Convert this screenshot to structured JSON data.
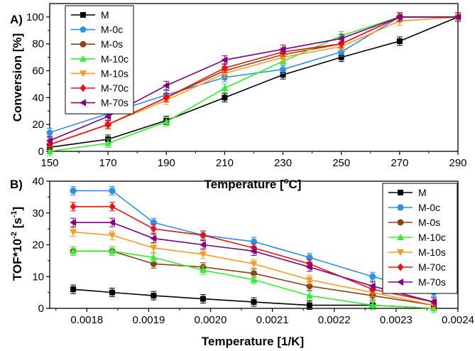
{
  "colors": {
    "M": "#000000",
    "M-0c": "#2e8ee8",
    "M-0s": "#8b4513",
    "M-10c": "#33ee33",
    "M-10s": "#ff9922",
    "M-70c": "#ee1111",
    "M-70s": "#800080"
  },
  "chart_data": [
    {
      "panel": "A)",
      "type": "line",
      "xlabel": "Temperature [",
      "xlabel_sup": "o",
      "xlabel_tail": "C]",
      "ylabel": "Conversion [%]",
      "xlim": [
        150,
        290
      ],
      "ylim": [
        0,
        110
      ],
      "xticks": [
        150,
        170,
        190,
        210,
        230,
        250,
        270,
        290
      ],
      "yticks": [
        0,
        20,
        40,
        60,
        80,
        100
      ],
      "legend_position": "top-left",
      "series": [
        {
          "name": "M",
          "marker": "square",
          "x": [
            150,
            170,
            190,
            210,
            230,
            250,
            270,
            290
          ],
          "values": [
            3,
            9,
            23,
            40,
            57,
            70,
            82,
            100
          ]
        },
        {
          "name": "M-0c",
          "marker": "pentagon",
          "x": [
            150,
            170,
            190,
            210,
            230,
            250,
            270,
            290
          ],
          "values": [
            14,
            28,
            42,
            55,
            61,
            74,
            100,
            100
          ]
        },
        {
          "name": "M-0s",
          "marker": "circle",
          "x": [
            150,
            170,
            190,
            210,
            230,
            250,
            270,
            290
          ],
          "values": [
            5,
            20,
            40,
            60,
            72,
            80,
            100,
            100
          ]
        },
        {
          "name": "M-10c",
          "marker": "triangle-up",
          "x": [
            150,
            170,
            190,
            210,
            230,
            250,
            270,
            290
          ],
          "values": [
            0,
            6,
            22,
            47,
            67,
            86,
            100,
            100
          ]
        },
        {
          "name": "M-10s",
          "marker": "triangle-down",
          "x": [
            150,
            170,
            190,
            210,
            230,
            250,
            270,
            290
          ],
          "values": [
            5,
            20,
            38,
            58,
            70,
            78,
            97,
            100
          ]
        },
        {
          "name": "M-70c",
          "marker": "diamond",
          "x": [
            150,
            170,
            190,
            210,
            230,
            250,
            270,
            290
          ],
          "values": [
            5,
            20,
            40,
            62,
            74,
            80,
            100,
            100
          ]
        },
        {
          "name": "M-70s",
          "marker": "triangle-left",
          "x": [
            150,
            170,
            190,
            210,
            230,
            250,
            270,
            290
          ],
          "values": [
            8,
            26,
            49,
            68,
            76,
            84,
            100,
            100
          ]
        }
      ]
    },
    {
      "panel": "B)",
      "type": "line",
      "xlabel": "Temperature [1/K]",
      "ylabel": "TOF*10",
      "ylabel_sup": "-2",
      "ylabel_mid": " [s",
      "ylabel_sup2": "-1",
      "ylabel_tail": "]",
      "xlim": [
        0.00174,
        0.0024
      ],
      "ylim": [
        0,
        40
      ],
      "xticks": [
        "0.0018",
        "0.0019",
        "0.0020",
        "0.0021",
        "0.0022",
        "0.0023",
        "0.0024"
      ],
      "yticks": [
        0,
        10,
        20,
        30,
        40
      ],
      "legend_position": "top-right",
      "series": [
        {
          "name": "M",
          "marker": "square",
          "x": [
            0.001778,
            0.001841,
            0.001908,
            0.001988,
            0.00207,
            0.00216,
            0.002262,
            0.002361
          ],
          "values": [
            6,
            5,
            4,
            3,
            2,
            1,
            1,
            0
          ]
        },
        {
          "name": "M-0c",
          "marker": "hexagon",
          "x": [
            0.001778,
            0.001841,
            0.001908,
            0.001988,
            0.00207,
            0.00216,
            0.002262,
            0.002361
          ],
          "values": [
            37,
            37,
            27,
            23,
            21,
            16,
            10,
            5
          ]
        },
        {
          "name": "M-0s",
          "marker": "circle",
          "x": [
            0.001778,
            0.001841,
            0.001908,
            0.001988,
            0.00207,
            0.00216,
            0.002262,
            0.002361
          ],
          "values": [
            18,
            18,
            14,
            13,
            11,
            7,
            4,
            1
          ]
        },
        {
          "name": "M-10c",
          "marker": "triangle-up",
          "x": [
            0.001778,
            0.001841,
            0.001908,
            0.001988,
            0.00207,
            0.00216,
            0.002262,
            0.002361
          ],
          "values": [
            18,
            18,
            16,
            12,
            9,
            4,
            1,
            0
          ]
        },
        {
          "name": "M-10s",
          "marker": "triangle-down",
          "x": [
            0.001778,
            0.001841,
            0.001908,
            0.001988,
            0.00207,
            0.00216,
            0.002262,
            0.002361
          ],
          "values": [
            24,
            23,
            19,
            17,
            14,
            9,
            5,
            1
          ]
        },
        {
          "name": "M-70c",
          "marker": "diamond",
          "x": [
            0.001778,
            0.001841,
            0.001908,
            0.001988,
            0.00207,
            0.00216,
            0.002262,
            0.002361
          ],
          "values": [
            32,
            32,
            25,
            23,
            19,
            14,
            6,
            2
          ]
        },
        {
          "name": "M-70s",
          "marker": "triangle-left",
          "x": [
            0.001778,
            0.001841,
            0.001908,
            0.001988,
            0.00207,
            0.00216,
            0.002262,
            0.002361
          ],
          "values": [
            27,
            27,
            22,
            20,
            18,
            13,
            7,
            2
          ]
        }
      ]
    }
  ]
}
